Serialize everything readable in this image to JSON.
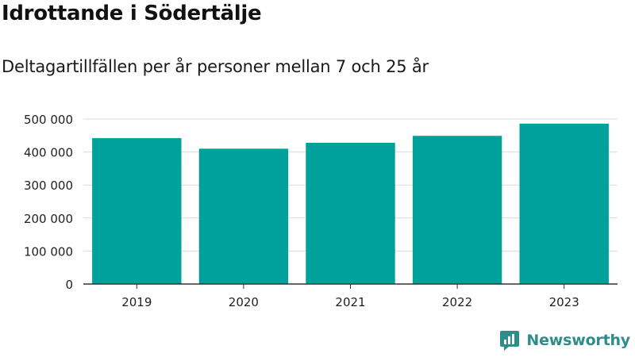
{
  "title": "Idrottande i Södertälje",
  "subtitle": "Deltagartillfällen per år personer mellan 7 och 25 år",
  "brand": {
    "name": "Newsworthy",
    "icon": "newsworthy-logo-icon",
    "color": "#2e8c8b"
  },
  "chart_data": {
    "type": "bar",
    "categories": [
      "2019",
      "2020",
      "2021",
      "2022",
      "2023"
    ],
    "values": [
      442000,
      410000,
      428000,
      449000,
      486000
    ],
    "yticks": [
      0,
      100000,
      200000,
      300000,
      400000,
      500000
    ],
    "ytick_labels": [
      "0",
      "100 000",
      "200 000",
      "300 000",
      "400 000",
      "500 000"
    ],
    "ylim": [
      0,
      500000
    ],
    "grid": true,
    "bar_color": "#00a19a",
    "xlabel": "",
    "ylabel": ""
  }
}
